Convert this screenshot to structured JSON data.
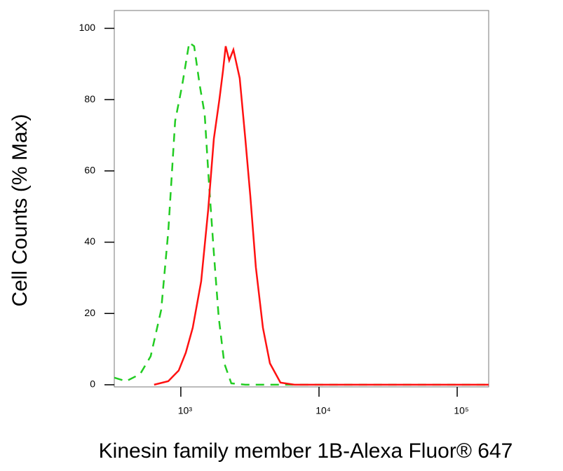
{
  "chart_data": {
    "type": "line",
    "x_label": "Kinesin family member 1B-Alexa Fluor® 647",
    "y_label": "Cell Counts (% Max)",
    "xscale": "log",
    "xlim": [
      330,
      169000
    ],
    "ylim": [
      -0.6,
      105
    ],
    "xticks": [
      {
        "value": 1000,
        "label": "10³"
      },
      {
        "value": 10000,
        "label": "10⁴"
      },
      {
        "value": 100000,
        "label": "10⁵"
      }
    ],
    "yticks": [
      0,
      20,
      40,
      60,
      80,
      100
    ],
    "grid": false,
    "series": [
      {
        "color": "#22cc22",
        "dash": true,
        "x": [
          330,
          402,
          508,
          605,
          721,
          811,
          910,
          1023,
          1151,
          1248,
          1371,
          1488,
          1596,
          1733,
          1880,
          2064,
          2318,
          2930,
          16900,
          169000
        ],
        "values": [
          2,
          1,
          3,
          8,
          21,
          43,
          74,
          84,
          96,
          95,
          84,
          76,
          57,
          37,
          19,
          6,
          0.4,
          0,
          0,
          0
        ]
      },
      {
        "color": "#ff1111",
        "dash": false,
        "x": [
          641,
          811,
          966,
          1086,
          1220,
          1404,
          1578,
          1733,
          1902,
          2017,
          2113,
          2240,
          2403,
          2669,
          2930,
          3184,
          3491,
          3926,
          4416,
          5262,
          6637,
          169000
        ],
        "values": [
          0,
          1,
          4,
          9,
          16,
          29,
          49,
          69,
          80,
          88,
          95,
          91,
          94,
          86,
          69,
          53,
          33,
          16,
          6,
          0.6,
          0,
          0
        ]
      }
    ]
  }
}
